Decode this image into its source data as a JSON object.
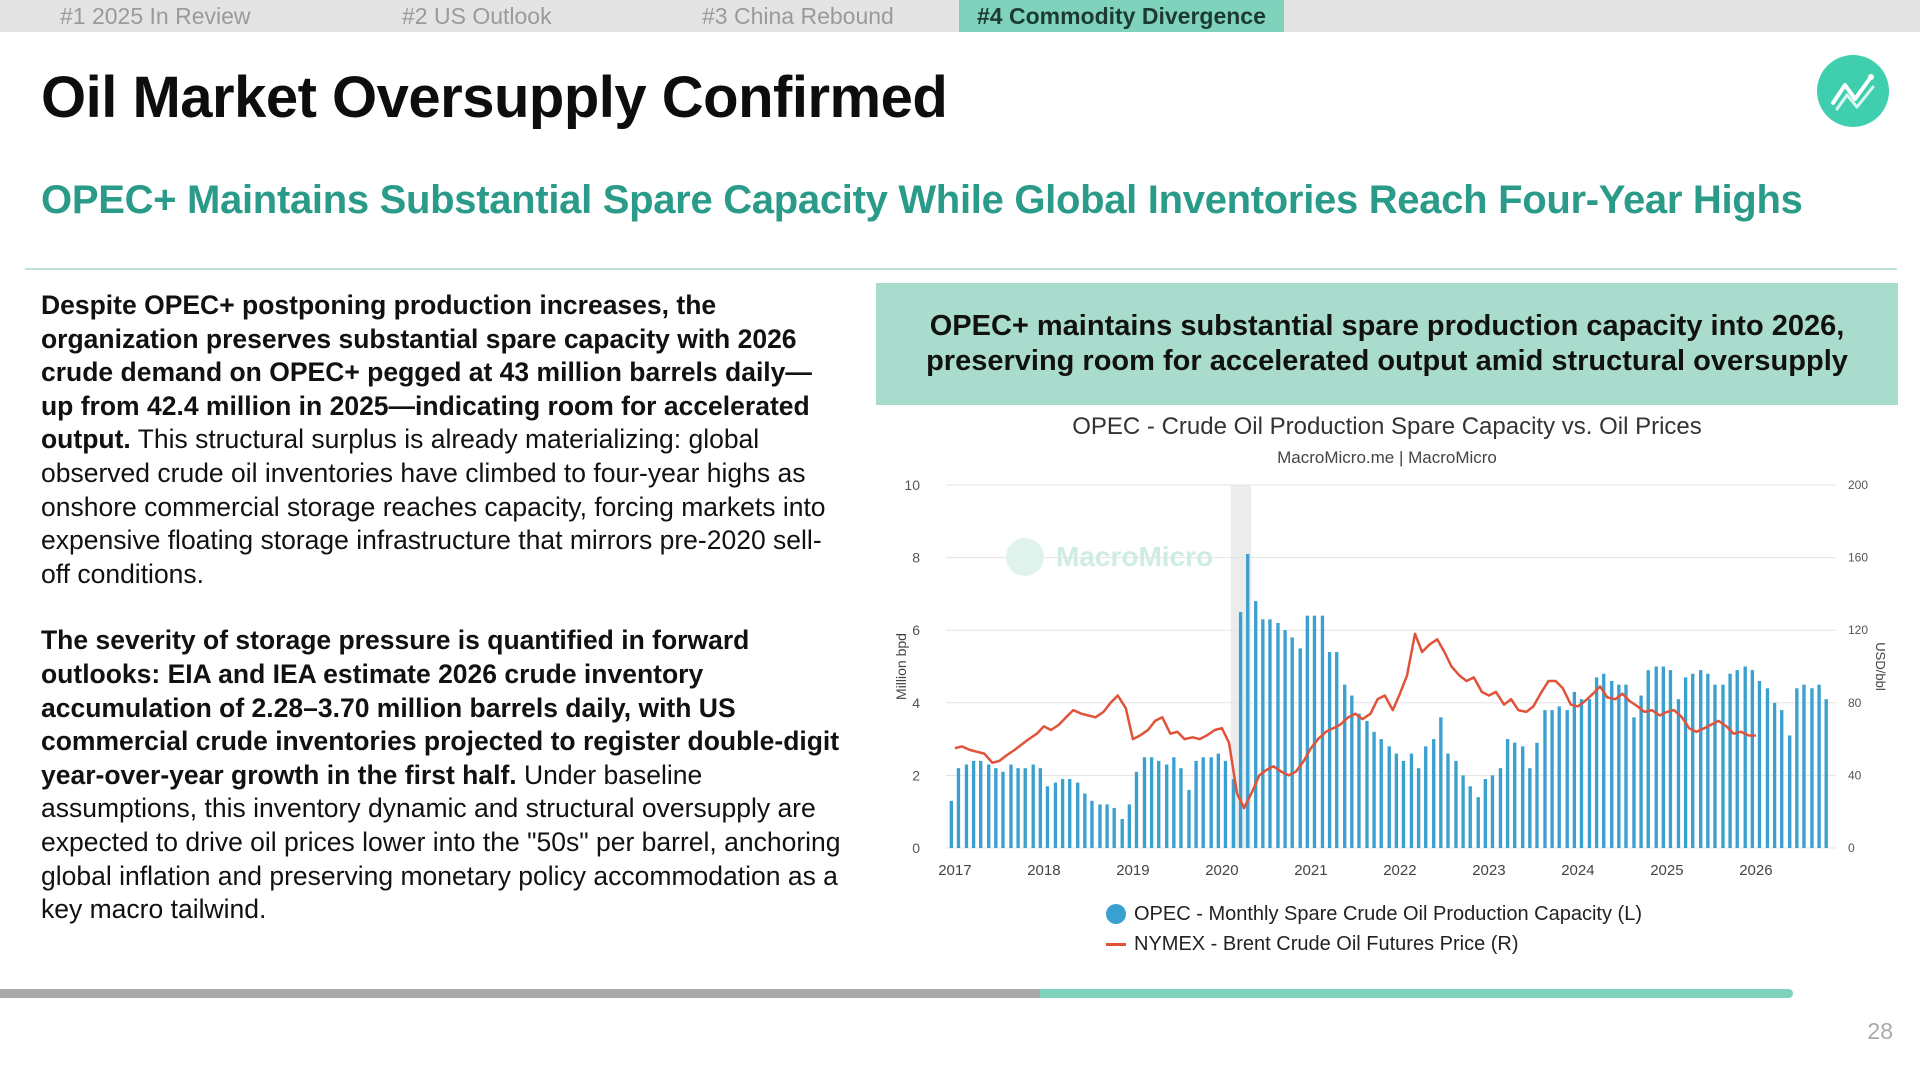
{
  "tabs": [
    {
      "label": "#1 2025 In Review",
      "active": false
    },
    {
      "label": "#2 US Outlook",
      "active": false
    },
    {
      "label": "#3 China Rebound",
      "active": false
    },
    {
      "label": "#4 Commodity Divergence",
      "active": true
    }
  ],
  "slide": {
    "title": "Oil Market Oversupply Confirmed",
    "subtitle": "OPEC+ Maintains Substantial Spare Capacity While Global Inventories Reach Four-Year Highs",
    "logo_icon": "chart-line-icon",
    "body": {
      "p1_bold": "Despite OPEC+ postponing production increases, the organization preserves substantial spare capacity with 2026 crude demand on OPEC+ pegged at 43 million barrels daily—up from 42.4 million in 2025—indicating room for accelerated output.",
      "p1_rest": " This structural surplus is already materializing: global observed crude oil inventories have climbed to four-year highs as onshore commercial storage reaches capacity, forcing markets into expensive floating storage infrastructure that mirrors pre-2020 sell-off conditions.",
      "p2_bold": "The severity of storage pressure is quantified in forward outlooks: EIA and IEA estimate 2026 crude inventory accumulation of 2.28–3.70 million barrels daily, with US commercial crude inventories projected to register double-digit year-over-year growth in the first half.",
      "p2_rest": " Under baseline assumptions, this inventory dynamic and structural oversupply are expected to drive oil prices lower into the \"50s\" per barrel, anchoring global inflation and preserving monetary policy accommodation as a key macro tailwind."
    },
    "callout": "OPEC+ maintains substantial spare production capacity into 2026, preserving room for accelerated output amid structural oversupply",
    "page_number": "28",
    "progress": 0.58
  },
  "colors": {
    "accent": "#2a9a89",
    "tab_active": "#7fd3bd",
    "callout_bg": "#a9dccd",
    "bar": "#3aa0cf",
    "line": "#e0533a"
  },
  "chart_data": {
    "type": "bar+line",
    "title": "OPEC - Crude Oil Production Spare Capacity vs. Oil Prices",
    "source": "MacroMicro.me | MacroMicro",
    "watermark": "MacroMicro",
    "ylabel_left": "Million bpd",
    "ylabel_right": "USD/bbl",
    "ylim_left": [
      0,
      10
    ],
    "ylim_right": [
      0,
      200
    ],
    "yticks_left": [
      "0",
      "2",
      "4",
      "6",
      "8",
      "10"
    ],
    "yticks_right": [
      "0",
      "40",
      "80",
      "120",
      "160",
      "200"
    ],
    "xlim": [
      2016.9,
      2026.9
    ],
    "xticks": [
      "2017",
      "2018",
      "2019",
      "2020",
      "2021",
      "2022",
      "2023",
      "2024",
      "2025",
      "2026"
    ],
    "shaded_period": [
      2020.1,
      2020.33
    ],
    "grid": true,
    "legend_position": "bottom",
    "series": [
      {
        "name": "OPEC - Monthly Spare Crude Oil Production Capacity (L)",
        "type": "bar",
        "color": "#3aa0cf",
        "x": [
          2016.96,
          2017.04,
          2017.13,
          2017.21,
          2017.29,
          2017.38,
          2017.46,
          2017.54,
          2017.63,
          2017.71,
          2017.79,
          2017.88,
          2017.96,
          2018.04,
          2018.13,
          2018.21,
          2018.29,
          2018.38,
          2018.46,
          2018.54,
          2018.63,
          2018.71,
          2018.79,
          2018.88,
          2018.96,
          2019.04,
          2019.13,
          2019.21,
          2019.29,
          2019.38,
          2019.46,
          2019.54,
          2019.63,
          2019.71,
          2019.79,
          2019.88,
          2019.96,
          2020.04,
          2020.13,
          2020.21,
          2020.29,
          2020.38,
          2020.46,
          2020.54,
          2020.63,
          2020.71,
          2020.79,
          2020.88,
          2020.96,
          2021.04,
          2021.13,
          2021.21,
          2021.29,
          2021.38,
          2021.46,
          2021.54,
          2021.63,
          2021.71,
          2021.79,
          2021.88,
          2021.96,
          2022.04,
          2022.13,
          2022.21,
          2022.29,
          2022.38,
          2022.46,
          2022.54,
          2022.63,
          2022.71,
          2022.79,
          2022.88,
          2022.96,
          2023.04,
          2023.13,
          2023.21,
          2023.29,
          2023.38,
          2023.46,
          2023.54,
          2023.63,
          2023.71,
          2023.79,
          2023.88,
          2023.96,
          2024.04,
          2024.13,
          2024.21,
          2024.29,
          2024.38,
          2024.46,
          2024.54,
          2024.63,
          2024.71,
          2024.79,
          2024.88,
          2024.96,
          2025.04,
          2025.13,
          2025.21,
          2025.29,
          2025.38,
          2025.46,
          2025.54,
          2025.63,
          2025.71,
          2025.79,
          2025.88,
          2025.96,
          2026.04,
          2026.13,
          2026.21,
          2026.29,
          2026.38,
          2026.46,
          2026.54,
          2026.63,
          2026.71,
          2026.79
        ],
        "values": [
          1.3,
          2.2,
          2.3,
          2.4,
          2.4,
          2.3,
          2.2,
          2.1,
          2.3,
          2.2,
          2.2,
          2.3,
          2.2,
          1.7,
          1.8,
          1.9,
          1.9,
          1.8,
          1.5,
          1.3,
          1.2,
          1.2,
          1.1,
          0.8,
          1.2,
          2.1,
          2.5,
          2.5,
          2.4,
          2.3,
          2.5,
          2.2,
          1.6,
          2.4,
          2.5,
          2.5,
          2.6,
          2.4,
          1.9,
          6.5,
          8.1,
          6.8,
          6.3,
          6.3,
          6.2,
          6.0,
          5.8,
          5.5,
          6.4,
          6.4,
          6.4,
          5.4,
          5.4,
          4.5,
          4.2,
          3.7,
          3.5,
          3.2,
          3.0,
          2.8,
          2.6,
          2.4,
          2.6,
          2.2,
          2.8,
          3.0,
          3.6,
          2.6,
          2.4,
          2.0,
          1.7,
          1.4,
          1.9,
          2.0,
          2.2,
          3.0,
          2.9,
          2.8,
          2.2,
          2.9,
          3.8,
          3.8,
          3.9,
          3.8,
          4.3,
          4.1,
          4.1,
          4.7,
          4.8,
          4.6,
          4.5,
          4.5,
          3.6,
          4.2,
          4.9,
          5.0,
          5.0,
          4.9,
          4.1,
          4.7,
          4.8,
          4.9,
          4.8,
          4.5,
          4.5,
          4.8,
          4.9,
          5.0,
          4.9,
          4.6,
          4.4,
          4.0,
          3.8,
          3.1,
          4.4,
          4.5,
          4.4,
          4.5,
          4.1
        ]
      },
      {
        "name": "NYMEX - Brent Crude Oil Futures Price (R)",
        "type": "line",
        "color": "#e0533a",
        "x": [
          2017.0,
          2017.08,
          2017.17,
          2017.25,
          2017.33,
          2017.42,
          2017.5,
          2017.58,
          2017.67,
          2017.75,
          2017.83,
          2017.92,
          2018.0,
          2018.08,
          2018.17,
          2018.25,
          2018.33,
          2018.42,
          2018.5,
          2018.58,
          2018.67,
          2018.75,
          2018.83,
          2018.92,
          2019.0,
          2019.08,
          2019.17,
          2019.25,
          2019.33,
          2019.42,
          2019.5,
          2019.58,
          2019.67,
          2019.75,
          2019.83,
          2019.92,
          2020.0,
          2020.08,
          2020.17,
          2020.25,
          2020.33,
          2020.42,
          2020.5,
          2020.58,
          2020.67,
          2020.75,
          2020.83,
          2020.92,
          2021.0,
          2021.08,
          2021.17,
          2021.25,
          2021.33,
          2021.42,
          2021.5,
          2021.58,
          2021.67,
          2021.75,
          2021.83,
          2021.92,
          2022.0,
          2022.08,
          2022.17,
          2022.25,
          2022.33,
          2022.42,
          2022.5,
          2022.58,
          2022.67,
          2022.75,
          2022.83,
          2022.92,
          2023.0,
          2023.08,
          2023.17,
          2023.25,
          2023.33,
          2023.42,
          2023.5,
          2023.58,
          2023.67,
          2023.75,
          2023.83,
          2023.92,
          2024.0,
          2024.08,
          2024.17,
          2024.25,
          2024.33,
          2024.42,
          2024.5,
          2024.58,
          2024.67,
          2024.75,
          2024.83,
          2024.92,
          2025.0,
          2025.08,
          2025.17,
          2025.25,
          2025.33,
          2025.42,
          2025.5,
          2025.58,
          2025.67,
          2025.75,
          2025.83,
          2025.92,
          2026.0
        ],
        "values": [
          55,
          56,
          54,
          53,
          52,
          47,
          48,
          51,
          54,
          57,
          60,
          63,
          67,
          65,
          68,
          72,
          76,
          74,
          73,
          72,
          75,
          80,
          84,
          77,
          60,
          62,
          65,
          70,
          72,
          63,
          64,
          60,
          61,
          60,
          62,
          65,
          66,
          58,
          30,
          22,
          30,
          40,
          43,
          45,
          42,
          40,
          42,
          48,
          55,
          60,
          64,
          66,
          68,
          72,
          74,
          71,
          74,
          82,
          84,
          76,
          85,
          95,
          118,
          108,
          112,
          115,
          108,
          100,
          95,
          92,
          94,
          86,
          84,
          86,
          79,
          82,
          76,
          75,
          78,
          85,
          92,
          92,
          88,
          79,
          78,
          81,
          85,
          89,
          83,
          82,
          85,
          81,
          78,
          75,
          76,
          73,
          75,
          76,
          72,
          66,
          64,
          66,
          68,
          70,
          67,
          63,
          64,
          62,
          62
        ]
      }
    ]
  }
}
